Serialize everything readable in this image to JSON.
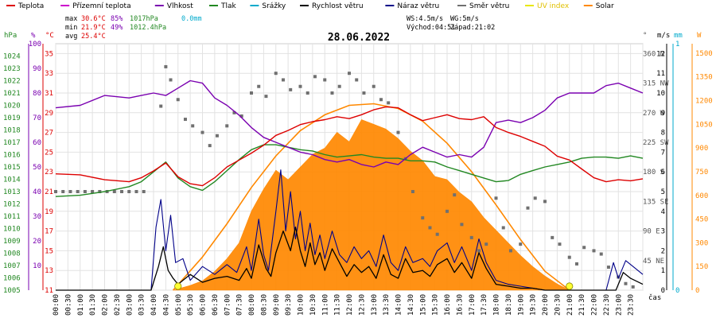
{
  "legend": [
    {
      "label": "Teplota",
      "color": "#dd0000"
    },
    {
      "label": "Přízemní teplota",
      "color": "#cc00cc"
    },
    {
      "label": "Vlhkost",
      "color": "#7a00b0"
    },
    {
      "label": "Tlak",
      "color": "#228822"
    },
    {
      "label": "Srážky",
      "color": "#00aacc"
    },
    {
      "label": "Rychlost větru",
      "color": "#000000"
    },
    {
      "label": "Náraz větru",
      "color": "#000088"
    },
    {
      "label": "Směr větru",
      "color": "#707070"
    },
    {
      "label": "UV index",
      "color": "#e8e800"
    },
    {
      "label": "Solar",
      "color": "#ff8800"
    }
  ],
  "stats": {
    "max_label": "max",
    "max_temp": "30.6°C",
    "max_hum": "85%",
    "max_press": "1017hPa",
    "max_rain": "0.0mm",
    "min_label": "min",
    "min_temp": "21.9°C",
    "min_hum": "49%",
    "min_press": "1012.4hPa",
    "avg_label": "avg",
    "avg_temp": "25.4°C",
    "ws": "WS:4.5m/s",
    "wg": "WG:5m/s",
    "sunrise": "Východ:04:51",
    "sunset": "Západ:21:02"
  },
  "date": "28.06.2022",
  "axes": {
    "left_units": [
      "hPa",
      "%",
      "°C"
    ],
    "right_units": [
      "°",
      "m/s",
      "mm",
      "W"
    ],
    "pressure_ticks": [
      "1005",
      "1006",
      "1007",
      "1008",
      "1009",
      "1010",
      "1011",
      "1012",
      "1013",
      "1014",
      "1015",
      "1016",
      "1017",
      "1018",
      "1019",
      "1020",
      "1021",
      "1022",
      "1023",
      "1024"
    ],
    "humidity_ticks": [
      "10",
      "20",
      "30",
      "40",
      "50",
      "60",
      "70",
      "80",
      "90",
      "100"
    ],
    "temp_ticks": [
      "11",
      "13",
      "15",
      "17",
      "19",
      "21",
      "23",
      "25",
      "27",
      "29",
      "31",
      "33",
      "35"
    ],
    "dir_ticks": [
      "45 NE",
      "90 E",
      "135 SE",
      "180 S",
      "225 SW",
      "270 W",
      "315 NW",
      "360 N"
    ],
    "wind_ticks": [
      "0",
      "1",
      "2",
      "3",
      "4",
      "5",
      "6",
      "7",
      "8",
      "9",
      "10",
      "11",
      "12"
    ],
    "rain_ticks": [
      "0",
      "1"
    ],
    "solar_ticks": [
      "0",
      "150",
      "300",
      "450",
      "600",
      "750",
      "900",
      "1050",
      "1200",
      "1350",
      "1500"
    ],
    "time_ticks": [
      "00:00",
      "00:30",
      "01:00",
      "01:30",
      "02:00",
      "02:30",
      "03:00",
      "03:30",
      "04:00",
      "04:30",
      "05:00",
      "05:30",
      "06:00",
      "06:30",
      "07:00",
      "07:30",
      "08:00",
      "08:30",
      "09:00",
      "09:30",
      "10:00",
      "10:30",
      "11:00",
      "11:30",
      "12:00",
      "12:30",
      "13:00",
      "13:30",
      "14:00",
      "14:30",
      "15:00",
      "15:30",
      "16:00",
      "16:30",
      "17:00",
      "17:30",
      "18:00",
      "18:30",
      "19:00",
      "19:30",
      "20:00",
      "20:30",
      "21:00",
      "21:30",
      "22:00",
      "22:30",
      "23:00",
      "23:30"
    ],
    "x_label": "čas"
  },
  "chart_data": {
    "type": "line",
    "title": "28.06.2022",
    "xlabel": "čas",
    "x_unit": "hour",
    "xlim": [
      0,
      24
    ],
    "grid": true,
    "series": [
      {
        "name": "Teplota",
        "axis": "°C",
        "ylim": [
          11,
          36
        ],
        "color": "#dd0000",
        "x": [
          0,
          1,
          2,
          3,
          3.5,
          4,
          4.5,
          5,
          5.5,
          6,
          6.5,
          7,
          7.5,
          8,
          8.5,
          9,
          9.5,
          10,
          10.5,
          11,
          11.5,
          12,
          12.5,
          13,
          13.5,
          14,
          14.5,
          15,
          15.5,
          16,
          16.5,
          17,
          17.5,
          18,
          18.5,
          19,
          19.5,
          20,
          20.5,
          21,
          21.5,
          22,
          22.5,
          23,
          23.5,
          24
        ],
        "y": [
          22.8,
          22.7,
          22.2,
          22.0,
          22.4,
          23.1,
          23.9,
          22.5,
          21.8,
          21.6,
          22.4,
          23.5,
          24.2,
          24.9,
          25.7,
          26.7,
          27.2,
          27.8,
          28.1,
          28.3,
          28.6,
          28.4,
          28.8,
          29.3,
          29.6,
          29.5,
          28.8,
          28.2,
          28.5,
          28.8,
          28.4,
          28.3,
          28.6,
          27.5,
          27.0,
          26.6,
          26.1,
          25.6,
          24.6,
          24.2,
          23.3,
          22.4,
          22.0,
          22.2,
          22.1,
          22.3
        ]
      },
      {
        "name": "Vlhkost",
        "axis": "%",
        "ylim": [
          0,
          100
        ],
        "color": "#7a00b0",
        "x": [
          0,
          1,
          2,
          3,
          3.5,
          4,
          4.5,
          5,
          5.5,
          6,
          6.5,
          7,
          7.5,
          8,
          8.5,
          9,
          9.5,
          10,
          10.5,
          11,
          11.5,
          12,
          12.5,
          13,
          13.5,
          14,
          14.5,
          15,
          15.5,
          16,
          16.5,
          17,
          17.5,
          18,
          18.5,
          19,
          19.5,
          20,
          20.5,
          21,
          21.5,
          22,
          22.5,
          23,
          23.5,
          24
        ],
        "y": [
          74,
          75,
          79,
          78,
          79,
          80,
          79,
          82,
          85,
          84,
          78,
          75,
          71,
          66,
          62,
          60,
          58,
          56,
          55,
          53,
          52,
          53,
          51,
          50,
          52,
          51,
          55,
          58,
          56,
          54,
          55,
          54,
          58,
          68,
          69,
          68,
          70,
          73,
          78,
          80,
          80,
          80,
          83,
          84,
          82,
          80
        ]
      },
      {
        "name": "Tlak",
        "axis": "hPa",
        "ylim": [
          1005,
          1025
        ],
        "color": "#228822",
        "x": [
          0,
          1,
          2,
          3,
          3.5,
          4,
          4.5,
          5,
          5.5,
          6,
          6.5,
          7,
          7.5,
          8,
          8.5,
          9,
          9.5,
          10,
          10.5,
          11,
          11.5,
          12,
          12.5,
          13,
          13.5,
          14,
          14.5,
          15,
          15.5,
          16,
          16.5,
          17,
          17.5,
          18,
          18.5,
          19,
          19.5,
          20,
          20.5,
          21,
          21.5,
          22,
          22.5,
          23,
          23.5,
          24
        ],
        "y": [
          1012.6,
          1012.7,
          1013.0,
          1013.4,
          1013.8,
          1014.6,
          1015.4,
          1014.1,
          1013.4,
          1013.1,
          1013.8,
          1014.7,
          1015.6,
          1016.4,
          1016.8,
          1016.8,
          1016.6,
          1016.4,
          1016.3,
          1016.0,
          1015.8,
          1015.9,
          1016.0,
          1015.8,
          1015.7,
          1015.7,
          1015.5,
          1015.5,
          1015.4,
          1015.0,
          1014.7,
          1014.4,
          1014.1,
          1013.8,
          1013.9,
          1014.4,
          1014.7,
          1015.0,
          1015.2,
          1015.4,
          1015.7,
          1015.8,
          1015.8,
          1015.7,
          1015.9,
          1015.7
        ]
      },
      {
        "name": "Rychlost větru",
        "axis": "m/s",
        "ylim": [
          0,
          12.5
        ],
        "color": "#000000",
        "x": [
          0,
          3.9,
          4.2,
          4.4,
          4.6,
          4.8,
          5.0,
          5.5,
          6.0,
          6.5,
          7.0,
          7.5,
          7.8,
          8.0,
          8.3,
          8.6,
          8.8,
          9.0,
          9.3,
          9.6,
          9.8,
          10.0,
          10.2,
          10.4,
          10.6,
          10.8,
          11.0,
          11.3,
          11.6,
          11.9,
          12.2,
          12.5,
          12.8,
          13.1,
          13.4,
          13.7,
          14.0,
          14.3,
          14.6,
          15.0,
          15.3,
          15.6,
          16.0,
          16.3,
          16.6,
          17.0,
          17.3,
          17.6,
          18.0,
          18.5,
          19.0,
          19.5,
          20.0,
          20.5,
          21.0,
          21.5,
          22.0,
          22.5,
          22.9,
          23.2,
          23.5,
          24
        ],
        "y": [
          0,
          0,
          1.2,
          2.2,
          1.0,
          0.6,
          0.3,
          0.8,
          0.4,
          0.6,
          0.7,
          0.5,
          1.1,
          0.6,
          2.3,
          1.1,
          0.7,
          1.9,
          3.0,
          2.0,
          3.2,
          2.0,
          1.2,
          2.4,
          1.3,
          1.9,
          1.0,
          2.1,
          1.4,
          0.7,
          1.3,
          0.9,
          1.2,
          0.6,
          1.8,
          0.8,
          0.6,
          1.6,
          0.9,
          1.0,
          0.7,
          1.3,
          1.6,
          0.9,
          1.4,
          0.6,
          1.9,
          1.1,
          0.3,
          0.2,
          0.1,
          0.1,
          0,
          0,
          0,
          0,
          0,
          0,
          0,
          0.9,
          0.6,
          0.3
        ]
      },
      {
        "name": "Náraz větru",
        "axis": "m/s",
        "ylim": [
          0,
          12.5
        ],
        "color": "#000088",
        "x": [
          0,
          3.9,
          4.1,
          4.3,
          4.5,
          4.7,
          4.9,
          5.2,
          5.5,
          6.0,
          6.5,
          7.0,
          7.4,
          7.8,
          8.0,
          8.3,
          8.5,
          8.7,
          9.0,
          9.2,
          9.4,
          9.6,
          9.8,
          10.0,
          10.2,
          10.4,
          10.6,
          10.8,
          11.0,
          11.3,
          11.6,
          11.9,
          12.2,
          12.5,
          12.8,
          13.1,
          13.4,
          13.7,
          14.0,
          14.3,
          14.6,
          15.0,
          15.3,
          15.6,
          16.0,
          16.3,
          16.6,
          17.0,
          17.3,
          17.6,
          18.0,
          18.5,
          19.0,
          19.5,
          20.0,
          20.5,
          21.0,
          21.5,
          22.0,
          22.5,
          22.8,
          23.0,
          23.3,
          23.6,
          24
        ],
        "y": [
          0,
          0,
          3.2,
          4.6,
          2.0,
          3.8,
          1.4,
          1.6,
          0.5,
          1.2,
          0.8,
          1.3,
          0.9,
          2.2,
          1.0,
          3.6,
          1.8,
          1.0,
          4.0,
          6.1,
          3.0,
          5.0,
          2.6,
          4.0,
          2.0,
          3.4,
          1.8,
          2.8,
          1.6,
          3.0,
          1.8,
          1.4,
          2.2,
          1.6,
          2.0,
          1.2,
          2.8,
          1.4,
          1.0,
          2.2,
          1.4,
          1.6,
          1.2,
          2.0,
          2.4,
          1.4,
          2.2,
          1.0,
          2.6,
          1.4,
          0.5,
          0.3,
          0.2,
          0.1,
          0,
          0,
          0,
          0,
          0,
          0,
          1.4,
          0.6,
          1.5,
          1.2,
          0.8
        ]
      },
      {
        "name": "Solar",
        "axis": "W",
        "ylim": [
          0,
          1560
        ],
        "color": "#ff8800",
        "x": [
          4.8,
          5.5,
          6.0,
          6.5,
          7.0,
          7.5,
          8.0,
          8.5,
          9.0,
          9.5,
          10.0,
          10.5,
          11.0,
          11.5,
          12.0,
          12.5,
          13.0,
          13.5,
          14.0,
          14.5,
          15.0,
          15.5,
          16.0,
          16.5,
          17.0,
          17.5,
          18.0,
          18.5,
          19.0,
          19.5,
          20.0,
          20.5,
          21.0
        ],
        "y": [
          0,
          30,
          60,
          120,
          200,
          300,
          500,
          640,
          760,
          700,
          780,
          860,
          900,
          1000,
          940,
          1080,
          1050,
          1020,
          960,
          880,
          820,
          720,
          700,
          620,
          560,
          460,
          380,
          300,
          220,
          150,
          90,
          40,
          0
        ]
      },
      {
        "name": "Solar (theoretical max)",
        "axis": "W",
        "ylim": [
          0,
          1560
        ],
        "color": "#ff8800",
        "x": [
          4.8,
          6,
          7,
          8,
          9,
          10,
          11,
          12,
          13,
          14,
          15,
          16,
          17,
          18,
          19,
          20,
          21
        ],
        "y": [
          0,
          210,
          420,
          650,
          850,
          1010,
          1110,
          1170,
          1180,
          1150,
          1070,
          930,
          750,
          540,
          320,
          120,
          0
        ]
      },
      {
        "name": "Směr větru",
        "axis": "°",
        "ylim": [
          0,
          375
        ],
        "color": "#707070",
        "type": "scatter",
        "x": [
          0.0,
          0.3,
          0.6,
          0.9,
          1.2,
          1.5,
          1.8,
          2.1,
          2.4,
          2.7,
          3.0,
          3.3,
          3.6,
          4.3,
          4.5,
          4.7,
          5.0,
          5.3,
          5.6,
          6.0,
          6.3,
          6.6,
          7.0,
          7.3,
          7.6,
          8.0,
          8.3,
          8.6,
          9.0,
          9.3,
          9.6,
          10.0,
          10.3,
          10.6,
          11.0,
          11.3,
          11.6,
          12.0,
          12.3,
          12.6,
          13.0,
          13.3,
          13.6,
          14.0,
          14.3,
          14.6,
          15.0,
          15.3,
          15.6,
          16.0,
          16.3,
          16.6,
          17.0,
          17.3,
          17.6,
          18.0,
          18.3,
          18.6,
          19.0,
          19.3,
          19.6,
          20.0,
          20.3,
          20.6,
          21.0,
          21.3,
          21.6,
          22.0,
          22.3,
          22.6,
          23.0,
          23.3,
          23.6
        ],
        "y": [
          150,
          150,
          150,
          150,
          150,
          150,
          150,
          150,
          150,
          150,
          150,
          150,
          150,
          280,
          340,
          320,
          290,
          260,
          250,
          240,
          220,
          235,
          250,
          270,
          265,
          300,
          310,
          295,
          330,
          320,
          305,
          310,
          300,
          325,
          320,
          300,
          310,
          330,
          320,
          300,
          310,
          290,
          285,
          240,
          200,
          150,
          110,
          95,
          85,
          120,
          145,
          100,
          80,
          60,
          70,
          140,
          95,
          60,
          70,
          125,
          140,
          135,
          80,
          70,
          50,
          40,
          65,
          60,
          55,
          35,
          20,
          10,
          5
        ]
      },
      {
        "name": "UV index",
        "axis": "UV",
        "color": "#e8e800",
        "type": "scatter",
        "x": [
          5.0,
          21.0
        ],
        "y": [
          0,
          0
        ]
      }
    ]
  }
}
